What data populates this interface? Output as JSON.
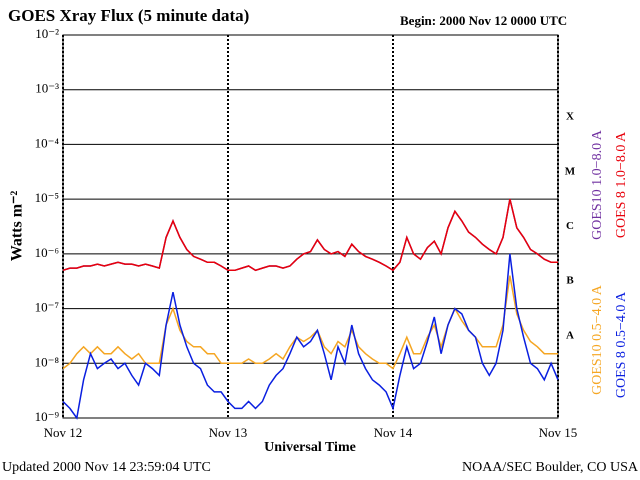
{
  "chart_data": {
    "type": "line",
    "title": "GOES Xray Flux (5 minute data)",
    "subtitle": "Begin:  2000 Nov 12 0000 UTC",
    "ylabel": "Watts m⁻²",
    "xlabel": "Universal Time",
    "footer_left": "Updated 2000 Nov 14 23:59:04 UTC",
    "footer_right": "NOAA/SEC Boulder, CO USA",
    "log_y": true,
    "grid": true,
    "ylim": [
      1e-09,
      0.01
    ],
    "yticks": [
      {
        "value": 1e-09,
        "label": "10⁻⁹"
      },
      {
        "value": 1e-08,
        "label": "10⁻⁸"
      },
      {
        "value": 1e-07,
        "label": "10⁻⁷"
      },
      {
        "value": 1e-06,
        "label": "10⁻⁶"
      },
      {
        "value": 1e-05,
        "label": "10⁻⁵"
      },
      {
        "value": 0.0001,
        "label": "10⁻⁴"
      },
      {
        "value": 0.001,
        "label": "10⁻³"
      },
      {
        "value": 0.01,
        "label": "10⁻²"
      }
    ],
    "xlim": [
      0,
      72
    ],
    "xticks": [
      {
        "value": 0,
        "label": "Nov 12"
      },
      {
        "value": 24,
        "label": "Nov 13"
      },
      {
        "value": 48,
        "label": "Nov 14"
      },
      {
        "value": 72,
        "label": "Nov 15"
      }
    ],
    "flare_classes": [
      {
        "label": "X",
        "value": 0.0001
      },
      {
        "label": "M",
        "value": 1e-05
      },
      {
        "label": "C",
        "value": 1e-06
      },
      {
        "label": "B",
        "value": 1e-07
      },
      {
        "label": "A",
        "value": 1e-08
      }
    ],
    "x": [
      0,
      1,
      2,
      3,
      4,
      5,
      6,
      7,
      8,
      9,
      10,
      11,
      12,
      13,
      14,
      15,
      16,
      17,
      18,
      19,
      20,
      21,
      22,
      23,
      24,
      25,
      26,
      27,
      28,
      29,
      30,
      31,
      32,
      33,
      34,
      35,
      36,
      37,
      38,
      39,
      40,
      41,
      42,
      43,
      44,
      45,
      46,
      47,
      48,
      49,
      50,
      51,
      52,
      53,
      54,
      55,
      56,
      57,
      58,
      59,
      60,
      61,
      62,
      63,
      64,
      65,
      66,
      67,
      68,
      69,
      70,
      71,
      72
    ],
    "series": [
      {
        "name": "GOES10 1.0−8.0 A",
        "color": "#7030a0",
        "values": [
          5e-07,
          5.5e-07,
          5.5e-07,
          6e-07,
          6e-07,
          6.5e-07,
          6e-07,
          6.5e-07,
          7e-07,
          6.5e-07,
          6.5e-07,
          6e-07,
          6.5e-07,
          6e-07,
          5.5e-07,
          2e-06,
          4e-06,
          2e-06,
          1.2e-06,
          9e-07,
          8e-07,
          7e-07,
          7e-07,
          6e-07,
          5e-07,
          5e-07,
          5.5e-07,
          6e-07,
          5e-07,
          5.5e-07,
          6e-07,
          6e-07,
          5.5e-07,
          6e-07,
          8e-07,
          1e-06,
          1.1e-06,
          1.8e-06,
          1.2e-06,
          1e-06,
          1.1e-06,
          9e-07,
          1.5e-06,
          1.1e-06,
          9e-07,
          8e-07,
          7e-07,
          6e-07,
          5e-07,
          7e-07,
          2e-06,
          1e-06,
          8e-07,
          1.3e-06,
          1.7e-06,
          1e-06,
          3e-06,
          6e-06,
          4e-06,
          2.5e-06,
          2e-06,
          1.5e-06,
          1.2e-06,
          1e-06,
          2e-06,
          1e-05,
          3e-06,
          2e-06,
          1.2e-06,
          1e-06,
          8e-07,
          7e-07,
          7e-07
        ]
      },
      {
        "name": "GOES 8 1.0−8.0 A",
        "color": "#e8000b",
        "values": [
          5e-07,
          5.5e-07,
          5.5e-07,
          6e-07,
          6e-07,
          6.5e-07,
          6e-07,
          6.5e-07,
          7e-07,
          6.5e-07,
          6.5e-07,
          6e-07,
          6.5e-07,
          6e-07,
          5.5e-07,
          2e-06,
          4e-06,
          2e-06,
          1.2e-06,
          9e-07,
          8e-07,
          7e-07,
          7e-07,
          6e-07,
          5e-07,
          5e-07,
          5.5e-07,
          6e-07,
          5e-07,
          5.5e-07,
          6e-07,
          6e-07,
          5.5e-07,
          6e-07,
          8e-07,
          1e-06,
          1.1e-06,
          1.8e-06,
          1.2e-06,
          1e-06,
          1.1e-06,
          9e-07,
          1.5e-06,
          1.1e-06,
          9e-07,
          8e-07,
          7e-07,
          6e-07,
          5e-07,
          7e-07,
          2e-06,
          1e-06,
          8e-07,
          1.3e-06,
          1.7e-06,
          1e-06,
          3e-06,
          6e-06,
          4e-06,
          2.5e-06,
          2e-06,
          1.5e-06,
          1.2e-06,
          1e-06,
          2e-06,
          1e-05,
          3e-06,
          2e-06,
          1.2e-06,
          1e-06,
          8e-07,
          7e-07,
          7e-07
        ]
      },
      {
        "name": "GOES10 0.5−4.0 A",
        "color": "#f5a623",
        "values": [
          8e-09,
          1e-08,
          1.5e-08,
          2e-08,
          1.5e-08,
          2e-08,
          1.5e-08,
          1.5e-08,
          2e-08,
          1.5e-08,
          1.2e-08,
          1.5e-08,
          1e-08,
          1e-08,
          1e-08,
          5e-08,
          1e-07,
          4e-08,
          2.5e-08,
          2e-08,
          2e-08,
          1.5e-08,
          1.5e-08,
          1e-08,
          1e-08,
          1e-08,
          1e-08,
          1.2e-08,
          1e-08,
          1e-08,
          1.2e-08,
          1.5e-08,
          1.2e-08,
          2e-08,
          3e-08,
          2.5e-08,
          3e-08,
          4e-08,
          2e-08,
          1.5e-08,
          2.5e-08,
          2e-08,
          4e-08,
          2e-08,
          1.5e-08,
          1.2e-08,
          1e-08,
          1e-08,
          8e-09,
          1.5e-08,
          3e-08,
          1.5e-08,
          1.5e-08,
          3e-08,
          5e-08,
          2e-08,
          5e-08,
          1e-07,
          6e-08,
          4e-08,
          3e-08,
          2e-08,
          2e-08,
          2e-08,
          5e-08,
          4e-07,
          8e-08,
          4e-08,
          2.5e-08,
          2e-08,
          1.5e-08,
          1.5e-08,
          1.5e-08
        ]
      },
      {
        "name": "GOES 8 0.5−4.0 A",
        "color": "#0a1fe0",
        "values": [
          2e-09,
          1.5e-09,
          1e-09,
          5e-09,
          1.5e-08,
          8e-09,
          1e-08,
          1.2e-08,
          8e-09,
          1e-08,
          6e-09,
          4e-09,
          1e-08,
          8e-09,
          6e-09,
          5e-08,
          2e-07,
          5e-08,
          2e-08,
          1e-08,
          8e-09,
          4e-09,
          3e-09,
          3e-09,
          2e-09,
          1.5e-09,
          1.5e-09,
          2e-09,
          1.5e-09,
          2e-09,
          4e-09,
          6e-09,
          8e-09,
          1.5e-08,
          3e-08,
          2e-08,
          2.5e-08,
          4e-08,
          1.5e-08,
          5e-09,
          2e-08,
          1e-08,
          5e-08,
          1.5e-08,
          8e-09,
          5e-09,
          4e-09,
          3e-09,
          1.5e-09,
          6e-09,
          2e-08,
          8e-09,
          1e-08,
          2.5e-08,
          7e-08,
          1.5e-08,
          5e-08,
          1e-07,
          8e-08,
          4e-08,
          3e-08,
          1e-08,
          6e-09,
          1e-08,
          4e-08,
          1e-06,
          1e-07,
          3e-08,
          1e-08,
          8e-09,
          5e-09,
          1e-08,
          5e-09
        ]
      }
    ]
  }
}
